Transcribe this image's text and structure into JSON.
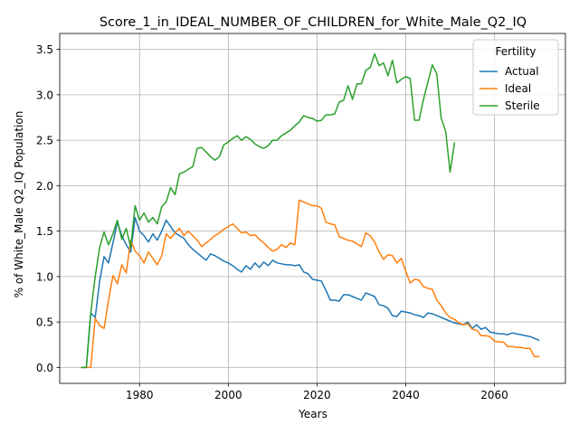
{
  "chart_data": {
    "type": "line",
    "title": "Score_1_in_IDEAL_NUMBER_OF_CHILDREN_for_White_Male_Q2_IQ",
    "xlabel": "Years",
    "ylabel": "% of White_Male Q2_IQ Population",
    "xlim": [
      1962,
      2076
    ],
    "ylim": [
      -0.175,
      3.675
    ],
    "xticks": [
      1980,
      2000,
      2020,
      2040,
      2060
    ],
    "yticks": [
      0.0,
      0.5,
      1.0,
      1.5,
      2.0,
      2.5,
      3.0,
      3.5
    ],
    "xtick_labels": [
      "1980",
      "2000",
      "2020",
      "2040",
      "2060"
    ],
    "ytick_labels": [
      "0.0",
      "0.5",
      "1.0",
      "1.5",
      "2.0",
      "2.5",
      "3.0",
      "3.5"
    ],
    "grid": true,
    "legend": {
      "title": "Fertility",
      "placement": "top-right"
    },
    "series": [
      {
        "name": "Actual",
        "color": "#1f77b4",
        "points": [
          [
            1967,
            0.0
          ],
          [
            1968,
            0.0
          ],
          [
            1969,
            0.6
          ],
          [
            1970,
            0.55
          ],
          [
            1971,
            0.95
          ],
          [
            1972,
            1.22
          ],
          [
            1973,
            1.15
          ],
          [
            1974,
            1.37
          ],
          [
            1975,
            1.6
          ],
          [
            1976,
            1.45
          ],
          [
            1977,
            1.35
          ],
          [
            1978,
            1.27
          ],
          [
            1979,
            1.65
          ],
          [
            1980,
            1.5
          ],
          [
            1981,
            1.45
          ],
          [
            1982,
            1.38
          ],
          [
            1983,
            1.47
          ],
          [
            1984,
            1.4
          ],
          [
            1985,
            1.5
          ],
          [
            1986,
            1.62
          ],
          [
            1987,
            1.55
          ],
          [
            1988,
            1.48
          ],
          [
            1989,
            1.45
          ],
          [
            1990,
            1.42
          ],
          [
            1991,
            1.35
          ],
          [
            1992,
            1.3
          ],
          [
            1993,
            1.26
          ],
          [
            1994,
            1.22
          ],
          [
            1995,
            1.18
          ],
          [
            1996,
            1.25
          ],
          [
            1997,
            1.23
          ],
          [
            1998,
            1.2
          ],
          [
            1999,
            1.17
          ],
          [
            2000,
            1.15
          ],
          [
            2001,
            1.12
          ],
          [
            2002,
            1.08
          ],
          [
            2003,
            1.05
          ],
          [
            2004,
            1.12
          ],
          [
            2005,
            1.08
          ],
          [
            2006,
            1.15
          ],
          [
            2007,
            1.1
          ],
          [
            2008,
            1.16
          ],
          [
            2009,
            1.12
          ],
          [
            2010,
            1.18
          ],
          [
            2011,
            1.15
          ],
          [
            2012,
            1.14
          ],
          [
            2013,
            1.13
          ],
          [
            2014,
            1.13
          ],
          [
            2015,
            1.12
          ],
          [
            2016,
            1.13
          ],
          [
            2017,
            1.05
          ],
          [
            2018,
            1.03
          ],
          [
            2019,
            0.97
          ],
          [
            2020,
            0.96
          ],
          [
            2021,
            0.95
          ],
          [
            2022,
            0.85
          ],
          [
            2023,
            0.74
          ],
          [
            2024,
            0.74
          ],
          [
            2025,
            0.73
          ],
          [
            2026,
            0.8
          ],
          [
            2027,
            0.8
          ],
          [
            2028,
            0.78
          ],
          [
            2029,
            0.76
          ],
          [
            2030,
            0.74
          ],
          [
            2031,
            0.82
          ],
          [
            2032,
            0.8
          ],
          [
            2033,
            0.78
          ],
          [
            2034,
            0.69
          ],
          [
            2035,
            0.68
          ],
          [
            2036,
            0.65
          ],
          [
            2037,
            0.57
          ],
          [
            2038,
            0.56
          ],
          [
            2039,
            0.62
          ],
          [
            2040,
            0.61
          ],
          [
            2041,
            0.6
          ],
          [
            2042,
            0.58
          ],
          [
            2043,
            0.57
          ],
          [
            2044,
            0.55
          ],
          [
            2045,
            0.6
          ],
          [
            2046,
            0.59
          ],
          [
            2047,
            0.57
          ],
          [
            2048,
            0.55
          ],
          [
            2049,
            0.53
          ],
          [
            2050,
            0.51
          ],
          [
            2051,
            0.49
          ],
          [
            2052,
            0.48
          ],
          [
            2053,
            0.47
          ],
          [
            2054,
            0.5
          ],
          [
            2055,
            0.43
          ],
          [
            2056,
            0.47
          ],
          [
            2057,
            0.42
          ],
          [
            2058,
            0.44
          ],
          [
            2059,
            0.39
          ],
          [
            2060,
            0.38
          ],
          [
            2061,
            0.37
          ],
          [
            2062,
            0.37
          ],
          [
            2063,
            0.36
          ],
          [
            2064,
            0.38
          ],
          [
            2065,
            0.37
          ],
          [
            2066,
            0.36
          ],
          [
            2067,
            0.35
          ],
          [
            2068,
            0.34
          ],
          [
            2069,
            0.32
          ],
          [
            2070,
            0.3
          ]
        ]
      },
      {
        "name": "Ideal",
        "color": "#ff7f0e",
        "points": [
          [
            1967,
            0.0
          ],
          [
            1968,
            0.0
          ],
          [
            1969,
            0.0
          ],
          [
            1970,
            0.54
          ],
          [
            1971,
            0.46
          ],
          [
            1972,
            0.43
          ],
          [
            1973,
            0.74
          ],
          [
            1974,
            1.01
          ],
          [
            1975,
            0.92
          ],
          [
            1976,
            1.13
          ],
          [
            1977,
            1.04
          ],
          [
            1978,
            1.4
          ],
          [
            1979,
            1.28
          ],
          [
            1980,
            1.23
          ],
          [
            1981,
            1.15
          ],
          [
            1982,
            1.27
          ],
          [
            1983,
            1.2
          ],
          [
            1984,
            1.13
          ],
          [
            1985,
            1.23
          ],
          [
            1986,
            1.47
          ],
          [
            1987,
            1.42
          ],
          [
            1988,
            1.48
          ],
          [
            1989,
            1.53
          ],
          [
            1990,
            1.45
          ],
          [
            1991,
            1.5
          ],
          [
            1992,
            1.45
          ],
          [
            1993,
            1.4
          ],
          [
            1994,
            1.33
          ],
          [
            1995,
            1.37
          ],
          [
            1996,
            1.41
          ],
          [
            1997,
            1.45
          ],
          [
            1998,
            1.48
          ],
          [
            1999,
            1.52
          ],
          [
            2000,
            1.55
          ],
          [
            2001,
            1.58
          ],
          [
            2002,
            1.53
          ],
          [
            2003,
            1.48
          ],
          [
            2004,
            1.49
          ],
          [
            2005,
            1.45
          ],
          [
            2006,
            1.46
          ],
          [
            2007,
            1.41
          ],
          [
            2008,
            1.37
          ],
          [
            2009,
            1.32
          ],
          [
            2010,
            1.28
          ],
          [
            2011,
            1.3
          ],
          [
            2012,
            1.35
          ],
          [
            2013,
            1.32
          ],
          [
            2014,
            1.37
          ],
          [
            2015,
            1.35
          ],
          [
            2016,
            1.84
          ],
          [
            2017,
            1.82
          ],
          [
            2018,
            1.8
          ],
          [
            2019,
            1.78
          ],
          [
            2020,
            1.78
          ],
          [
            2021,
            1.75
          ],
          [
            2022,
            1.6
          ],
          [
            2023,
            1.58
          ],
          [
            2024,
            1.57
          ],
          [
            2025,
            1.44
          ],
          [
            2026,
            1.42
          ],
          [
            2027,
            1.4
          ],
          [
            2028,
            1.39
          ],
          [
            2029,
            1.36
          ],
          [
            2030,
            1.33
          ],
          [
            2031,
            1.48
          ],
          [
            2032,
            1.45
          ],
          [
            2033,
            1.38
          ],
          [
            2034,
            1.27
          ],
          [
            2035,
            1.19
          ],
          [
            2036,
            1.24
          ],
          [
            2037,
            1.23
          ],
          [
            2038,
            1.15
          ],
          [
            2039,
            1.2
          ],
          [
            2040,
            1.06
          ],
          [
            2041,
            0.93
          ],
          [
            2042,
            0.97
          ],
          [
            2043,
            0.96
          ],
          [
            2044,
            0.89
          ],
          [
            2045,
            0.87
          ],
          [
            2046,
            0.86
          ],
          [
            2047,
            0.74
          ],
          [
            2048,
            0.68
          ],
          [
            2049,
            0.6
          ],
          [
            2050,
            0.55
          ],
          [
            2051,
            0.53
          ],
          [
            2052,
            0.49
          ],
          [
            2053,
            0.47
          ],
          [
            2054,
            0.48
          ],
          [
            2055,
            0.42
          ],
          [
            2056,
            0.41
          ],
          [
            2057,
            0.35
          ],
          [
            2058,
            0.35
          ],
          [
            2059,
            0.34
          ],
          [
            2060,
            0.29
          ],
          [
            2061,
            0.28
          ],
          [
            2062,
            0.28
          ],
          [
            2063,
            0.23
          ],
          [
            2064,
            0.23
          ],
          [
            2065,
            0.22
          ],
          [
            2066,
            0.22
          ],
          [
            2067,
            0.21
          ],
          [
            2068,
            0.21
          ],
          [
            2069,
            0.12
          ],
          [
            2070,
            0.12
          ]
        ]
      },
      {
        "name": "Sterile",
        "color": "#2ca02c",
        "points": [
          [
            1967,
            0.0
          ],
          [
            1968,
            0.0
          ],
          [
            1969,
            0.6
          ],
          [
            1970,
            1.0
          ],
          [
            1971,
            1.32
          ],
          [
            1972,
            1.49
          ],
          [
            1973,
            1.35
          ],
          [
            1974,
            1.47
          ],
          [
            1975,
            1.62
          ],
          [
            1976,
            1.41
          ],
          [
            1977,
            1.53
          ],
          [
            1978,
            1.32
          ],
          [
            1979,
            1.78
          ],
          [
            1980,
            1.62
          ],
          [
            1981,
            1.7
          ],
          [
            1982,
            1.6
          ],
          [
            1983,
            1.65
          ],
          [
            1984,
            1.58
          ],
          [
            1985,
            1.77
          ],
          [
            1986,
            1.82
          ],
          [
            1987,
            1.98
          ],
          [
            1988,
            1.9
          ],
          [
            1989,
            2.13
          ],
          [
            1990,
            2.15
          ],
          [
            1991,
            2.18
          ],
          [
            1992,
            2.21
          ],
          [
            1993,
            2.41
          ],
          [
            1994,
            2.42
          ],
          [
            1995,
            2.37
          ],
          [
            1996,
            2.32
          ],
          [
            1997,
            2.28
          ],
          [
            1998,
            2.32
          ],
          [
            1999,
            2.45
          ],
          [
            2000,
            2.48
          ],
          [
            2001,
            2.52
          ],
          [
            2002,
            2.55
          ],
          [
            2003,
            2.5
          ],
          [
            2004,
            2.54
          ],
          [
            2005,
            2.51
          ],
          [
            2006,
            2.46
          ],
          [
            2007,
            2.43
          ],
          [
            2008,
            2.41
          ],
          [
            2009,
            2.44
          ],
          [
            2010,
            2.5
          ],
          [
            2011,
            2.5
          ],
          [
            2012,
            2.55
          ],
          [
            2013,
            2.58
          ],
          [
            2014,
            2.61
          ],
          [
            2015,
            2.66
          ],
          [
            2016,
            2.7
          ],
          [
            2017,
            2.77
          ],
          [
            2018,
            2.75
          ],
          [
            2019,
            2.74
          ],
          [
            2020,
            2.71
          ],
          [
            2021,
            2.72
          ],
          [
            2022,
            2.78
          ],
          [
            2023,
            2.78
          ],
          [
            2024,
            2.79
          ],
          [
            2025,
            2.92
          ],
          [
            2026,
            2.94
          ],
          [
            2027,
            3.1
          ],
          [
            2028,
            2.95
          ],
          [
            2029,
            3.12
          ],
          [
            2030,
            3.12
          ],
          [
            2031,
            3.27
          ],
          [
            2032,
            3.3
          ],
          [
            2033,
            3.45
          ],
          [
            2034,
            3.32
          ],
          [
            2035,
            3.35
          ],
          [
            2036,
            3.21
          ],
          [
            2037,
            3.38
          ],
          [
            2038,
            3.13
          ],
          [
            2039,
            3.17
          ],
          [
            2040,
            3.2
          ],
          [
            2041,
            3.18
          ],
          [
            2042,
            2.72
          ],
          [
            2043,
            2.72
          ],
          [
            2044,
            2.95
          ],
          [
            2045,
            3.14
          ],
          [
            2046,
            3.33
          ],
          [
            2047,
            3.23
          ],
          [
            2048,
            2.74
          ],
          [
            2049,
            2.6
          ],
          [
            2050,
            2.15
          ],
          [
            2051,
            2.47
          ]
        ]
      }
    ]
  }
}
